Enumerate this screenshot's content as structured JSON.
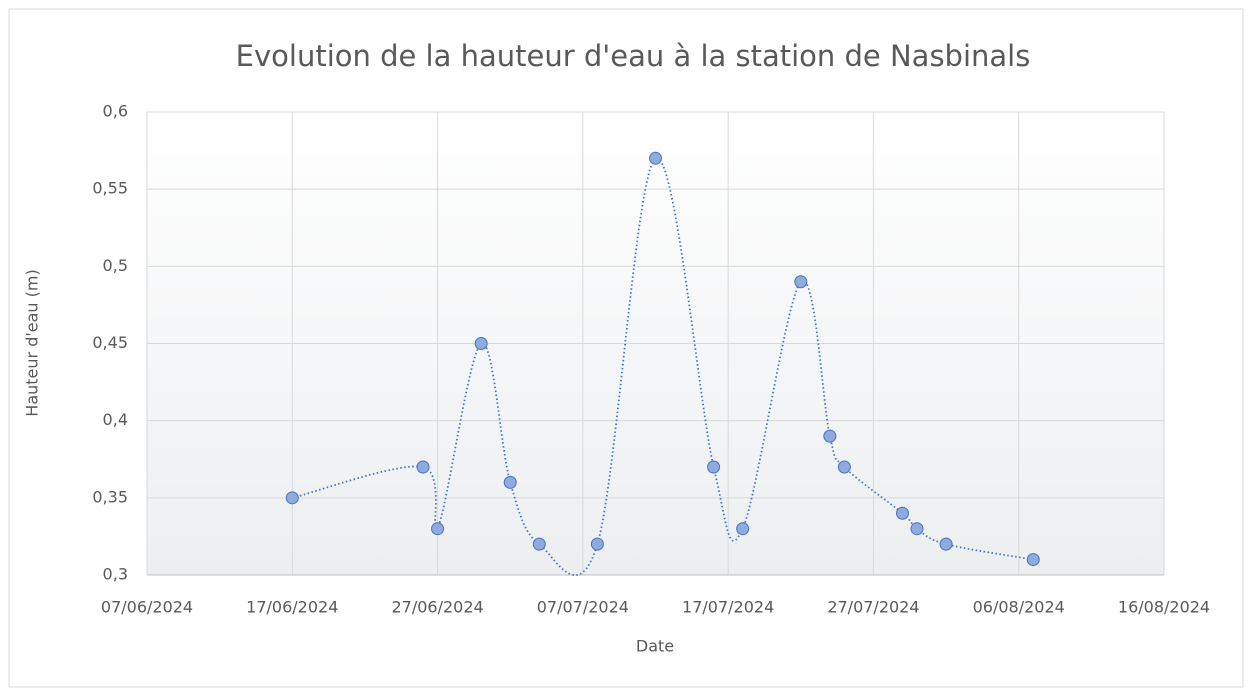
{
  "chart_data": {
    "type": "scatter",
    "title": "Evolution de la hauteur d'eau à la station de Nasbinals",
    "x_label": "Date",
    "y_label": "Hauteur d'eau (m)",
    "x": [
      "2024-06-17",
      "2024-06-26",
      "2024-06-27",
      "2024-06-30",
      "2024-07-02",
      "2024-07-04",
      "2024-07-08",
      "2024-07-12",
      "2024-07-16",
      "2024-07-18",
      "2024-07-22",
      "2024-07-24",
      "2024-07-25",
      "2024-07-29",
      "2024-07-30",
      "2024-08-01",
      "2024-08-07"
    ],
    "series": [
      {
        "color": "#8faadc",
        "values": [
          0.35,
          0.37,
          0.33,
          0.45,
          0.36,
          0.32,
          0.32,
          0.57,
          0.37,
          0.33,
          0.49,
          0.39,
          0.37,
          0.34,
          0.33,
          0.32,
          0.31
        ]
      }
    ],
    "xlim": [
      "2024-06-07",
      "2024-08-16"
    ],
    "xticks": [
      {
        "value": "2024-06-07",
        "label": "07/06/2024"
      },
      {
        "value": "2024-06-17",
        "label": "17/06/2024"
      },
      {
        "value": "2024-06-27",
        "label": "27/06/2024"
      },
      {
        "value": "2024-07-07",
        "label": "07/07/2024"
      },
      {
        "value": "2024-07-17",
        "label": "17/07/2024"
      },
      {
        "value": "2024-07-27",
        "label": "27/07/2024"
      },
      {
        "value": "2024-08-06",
        "label": "06/08/2024"
      },
      {
        "value": "2024-08-16",
        "label": "16/08/2024"
      }
    ],
    "ylim": [
      0.3,
      0.6
    ],
    "yticks": [
      {
        "value": 0.3,
        "label": "0,3"
      },
      {
        "value": 0.35,
        "label": "0,35"
      },
      {
        "value": 0.4,
        "label": "0,4"
      },
      {
        "value": 0.45,
        "label": "0,45"
      },
      {
        "value": 0.5,
        "label": "0,5"
      },
      {
        "value": 0.55,
        "label": "0,55"
      },
      {
        "value": 0.6,
        "label": "0,6"
      }
    ],
    "grid": true,
    "smooth": true
  }
}
